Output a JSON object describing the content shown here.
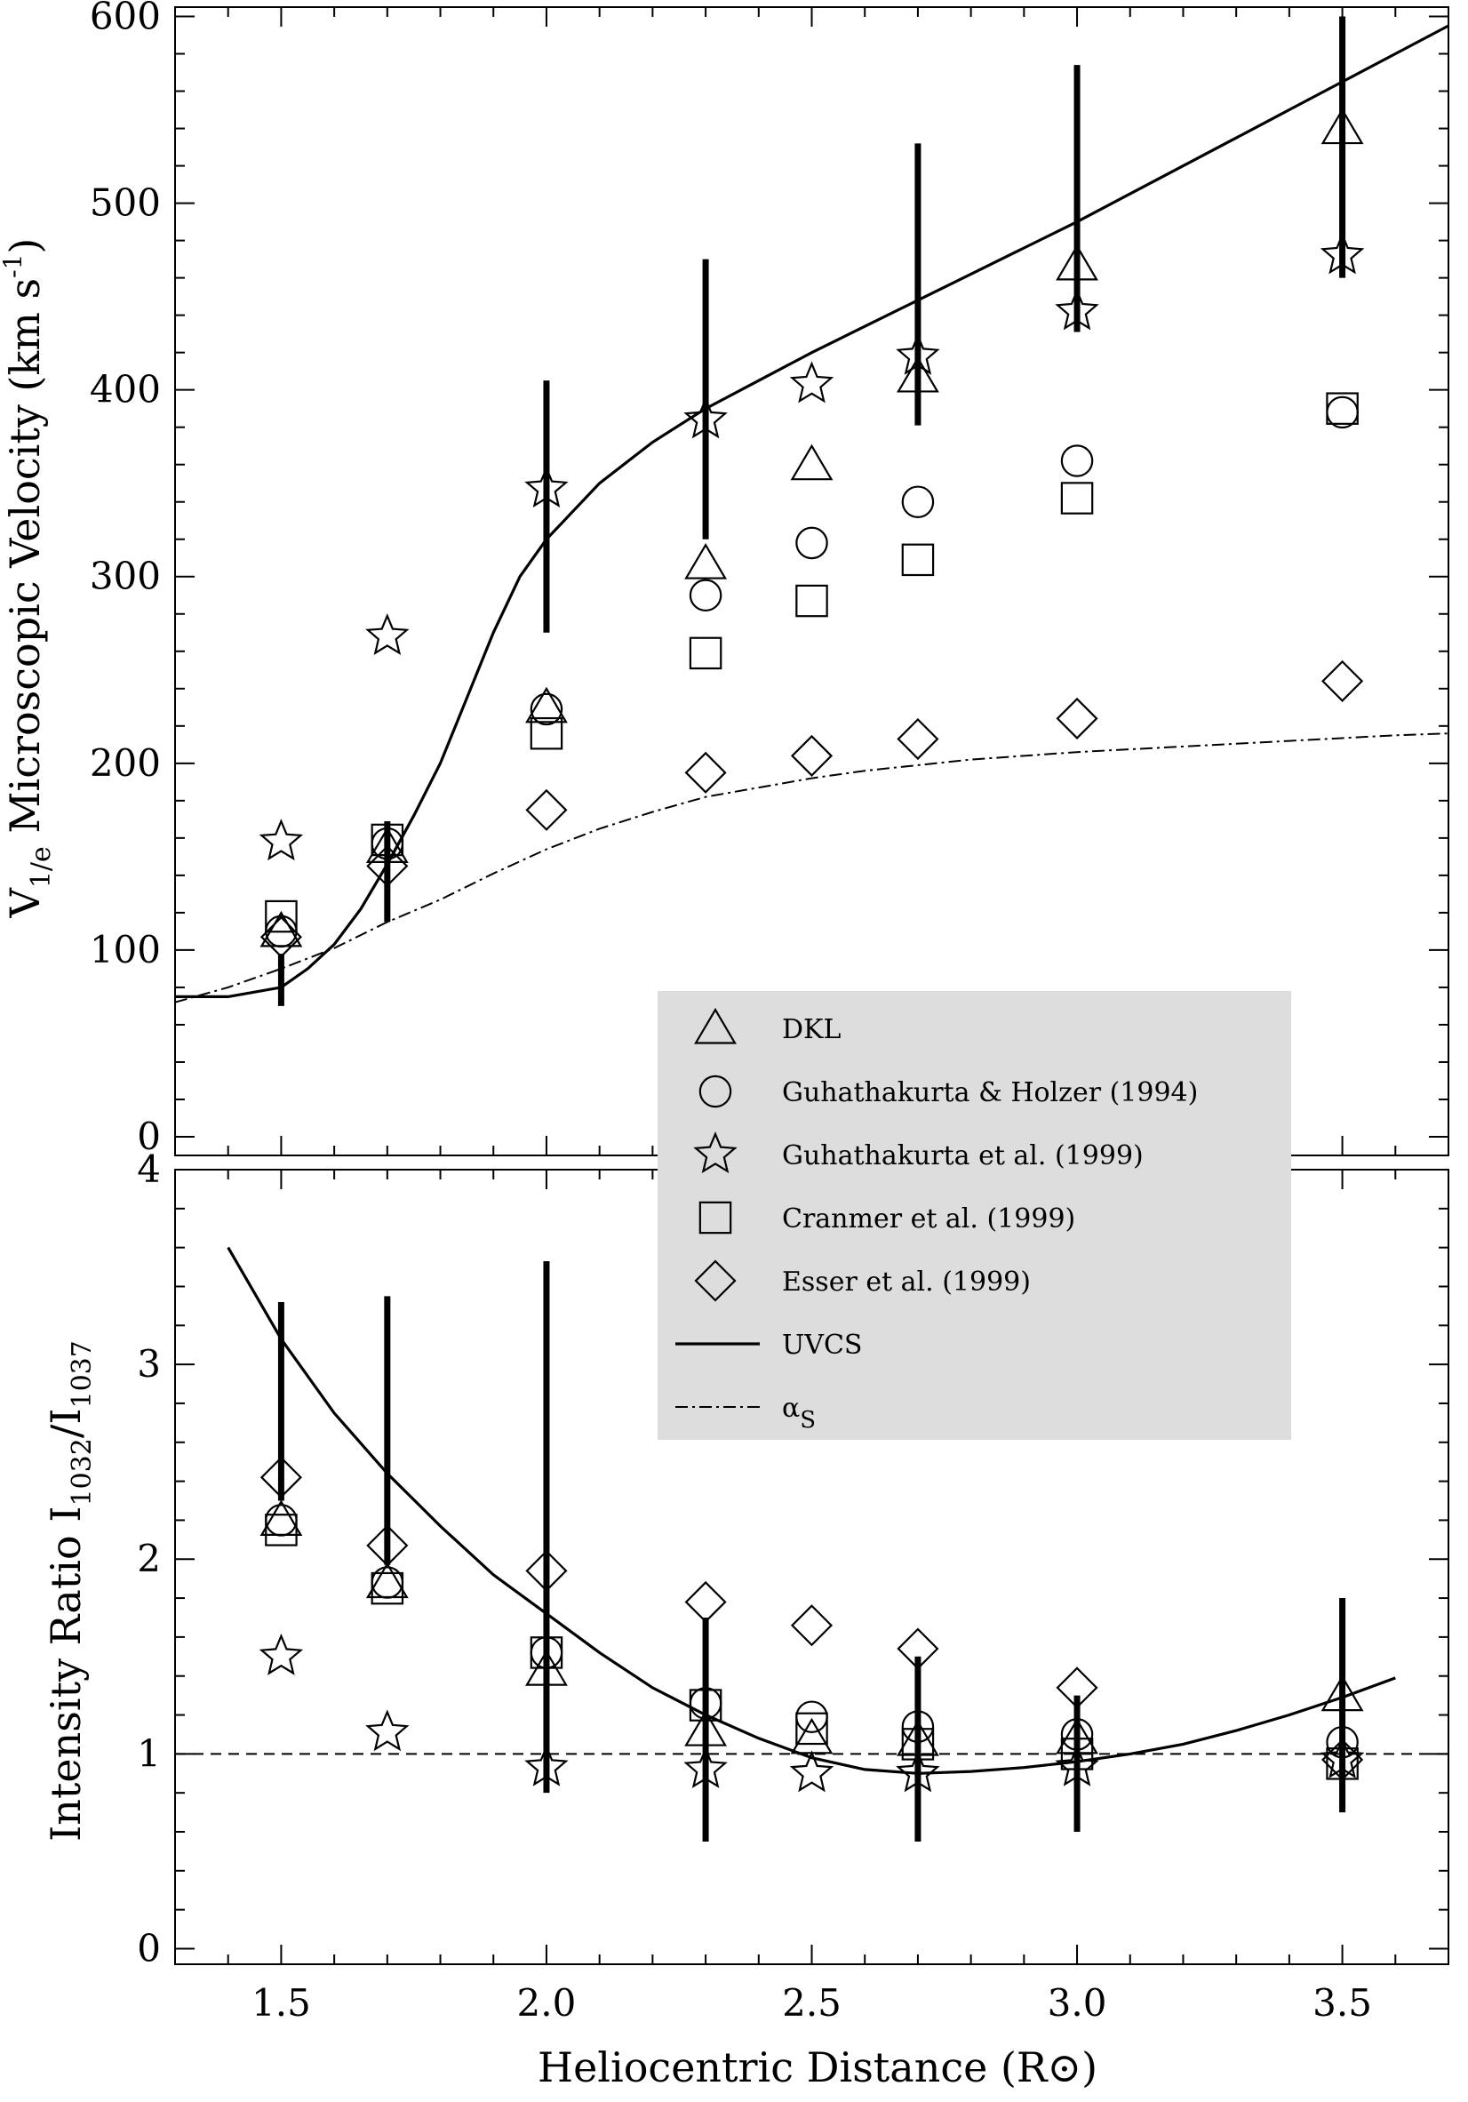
{
  "chart_data": [
    {
      "panel": "top",
      "type": "scatter",
      "ylabel_main": "V",
      "ylabel_sub": "1/e",
      "ylabel_rest": " Microscopic Velocity (km s",
      "ylabel_sup": "-1",
      "ylabel_close": ")",
      "xlim": [
        1.3,
        3.7
      ],
      "ylim": [
        -10,
        605
      ],
      "yticks": [
        0,
        100,
        200,
        300,
        400,
        500,
        600
      ],
      "series": [
        {
          "key": "dkl",
          "name": "DKL",
          "marker": "triangle",
          "x": [
            1.5,
            1.7,
            2.0,
            2.3,
            2.5,
            2.7,
            3.0,
            3.5
          ],
          "y": [
            110,
            155,
            230,
            307,
            360,
            407,
            467,
            540
          ]
        },
        {
          "key": "gh94",
          "name": "Guhathakurta & Holzer (1994)",
          "marker": "circle",
          "x": [
            1.5,
            1.7,
            2.0,
            2.3,
            2.5,
            2.7,
            3.0,
            3.5
          ],
          "y": [
            110,
            157,
            229,
            290,
            318,
            340,
            362,
            388
          ]
        },
        {
          "key": "g99",
          "name": "Guhathakurta et al. (1999)",
          "marker": "star",
          "x": [
            1.5,
            1.7,
            2.0,
            2.3,
            2.5,
            2.7,
            3.0,
            3.5
          ],
          "y": [
            158,
            268,
            347,
            384,
            403,
            418,
            442,
            472
          ]
        },
        {
          "key": "c99",
          "name": "Cranmer et al. (1999)",
          "marker": "square",
          "x": [
            1.5,
            1.7,
            2.0,
            2.3,
            2.5,
            2.7,
            3.0,
            3.5
          ],
          "y": [
            118,
            159,
            216,
            259,
            287,
            309,
            342,
            390
          ]
        },
        {
          "key": "e99",
          "name": "Esser et al. (1999)",
          "marker": "diamond",
          "x": [
            1.5,
            1.7,
            2.0,
            2.3,
            2.5,
            2.7,
            3.0,
            3.5
          ],
          "y": [
            107,
            145,
            175,
            195,
            204,
            213,
            224,
            244
          ]
        }
      ],
      "uvcs_curve": {
        "x": [
          1.3,
          1.4,
          1.5,
          1.55,
          1.6,
          1.65,
          1.7,
          1.75,
          1.8,
          1.85,
          1.9,
          1.95,
          2.0,
          2.1,
          2.2,
          2.3,
          2.4,
          2.5,
          2.6,
          2.7,
          2.8,
          2.9,
          3.0,
          3.1,
          3.2,
          3.3,
          3.4,
          3.5,
          3.6,
          3.7
        ],
        "y": [
          75,
          75,
          80,
          90,
          103,
          122,
          146,
          172,
          200,
          235,
          270,
          300,
          320,
          350,
          372,
          390,
          405,
          420,
          434,
          448,
          462,
          476,
          490,
          505,
          520,
          535,
          550,
          565,
          580,
          595
        ]
      },
      "alpha_curve": {
        "x": [
          1.3,
          1.4,
          1.5,
          1.6,
          1.7,
          1.8,
          1.9,
          2.0,
          2.1,
          2.2,
          2.3,
          2.4,
          2.5,
          2.6,
          2.7,
          2.8,
          2.9,
          3.0,
          3.2,
          3.4,
          3.6,
          3.7
        ],
        "y": [
          72,
          80,
          90,
          101,
          115,
          127,
          141,
          154,
          165,
          174,
          182,
          187,
          192,
          196,
          199,
          202,
          204,
          206,
          209,
          212,
          215,
          216
        ]
      },
      "error_bars": [
        {
          "x": 1.5,
          "low": 70,
          "high": 98
        },
        {
          "x": 1.7,
          "low": 115,
          "high": 169
        },
        {
          "x": 2.0,
          "low": 270,
          "high": 405
        },
        {
          "x": 2.3,
          "low": 320,
          "high": 470
        },
        {
          "x": 2.7,
          "low": 381,
          "high": 532
        },
        {
          "x": 3.0,
          "low": 431,
          "high": 574
        },
        {
          "x": 3.5,
          "low": 460,
          "high": 600
        }
      ]
    },
    {
      "panel": "bottom",
      "type": "scatter",
      "ylabel_main": "Intensity Ratio I",
      "ylabel_sub1": "1032",
      "ylabel_slash": "/I",
      "ylabel_sub2": "1037",
      "xlabel_main": "Heliocentric Distance (R",
      "xlabel_symbol": "⊙",
      "xlabel_close": ")",
      "xlim": [
        1.3,
        3.7
      ],
      "ylim": [
        -0.08,
        4.0
      ],
      "yticks": [
        0,
        1,
        2,
        3,
        4
      ],
      "xticks": [
        "1.5",
        "2.0",
        "2.5",
        "3.0",
        "3.5"
      ],
      "reference_line_y": 1.0,
      "series": [
        {
          "key": "dkl",
          "marker": "triangle",
          "x": [
            1.5,
            1.7,
            2.0,
            2.3,
            2.5,
            2.7,
            3.0,
            3.5
          ],
          "y": [
            2.2,
            1.88,
            1.43,
            1.12,
            1.08,
            1.07,
            1.08,
            1.3
          ]
        },
        {
          "key": "gh94",
          "marker": "circle",
          "x": [
            1.5,
            1.7,
            2.0,
            2.3,
            2.5,
            2.7,
            3.0,
            3.5
          ],
          "y": [
            2.2,
            1.88,
            1.52,
            1.26,
            1.19,
            1.14,
            1.1,
            1.06
          ]
        },
        {
          "key": "g99",
          "marker": "star",
          "x": [
            1.5,
            1.7,
            2.0,
            2.3,
            2.5,
            2.7,
            3.0,
            3.5
          ],
          "y": [
            1.5,
            1.11,
            0.93,
            0.92,
            0.9,
            0.9,
            0.93,
            0.97
          ]
        },
        {
          "key": "c99",
          "marker": "square",
          "x": [
            1.5,
            1.7,
            2.0,
            2.3,
            2.5,
            2.7,
            3.0,
            3.5
          ],
          "y": [
            2.15,
            1.85,
            1.52,
            1.25,
            1.13,
            1.05,
            1.0,
            0.95
          ]
        },
        {
          "key": "e99",
          "marker": "diamond",
          "x": [
            1.5,
            1.7,
            2.0,
            2.3,
            2.5,
            2.7,
            3.0,
            3.5
          ],
          "y": [
            2.42,
            2.07,
            1.94,
            1.78,
            1.66,
            1.54,
            1.34,
            0.97
          ]
        }
      ],
      "uvcs_curve": {
        "x": [
          1.4,
          1.5,
          1.6,
          1.7,
          1.8,
          1.9,
          2.0,
          2.1,
          2.2,
          2.3,
          2.4,
          2.5,
          2.6,
          2.7,
          2.8,
          2.9,
          3.0,
          3.1,
          3.2,
          3.3,
          3.4,
          3.5,
          3.6
        ],
        "y": [
          3.6,
          3.13,
          2.75,
          2.44,
          2.17,
          1.92,
          1.72,
          1.52,
          1.34,
          1.2,
          1.08,
          0.98,
          0.92,
          0.9,
          0.91,
          0.93,
          0.96,
          1.0,
          1.05,
          1.12,
          1.2,
          1.29,
          1.39
        ]
      },
      "error_bars": [
        {
          "x": 1.5,
          "low": 2.3,
          "high": 3.32
        },
        {
          "x": 1.7,
          "low": 1.97,
          "high": 3.35
        },
        {
          "x": 2.0,
          "low": 0.8,
          "high": 3.53
        },
        {
          "x": 2.3,
          "low": 0.55,
          "high": 1.7
        },
        {
          "x": 2.7,
          "low": 0.55,
          "high": 1.5
        },
        {
          "x": 3.0,
          "low": 0.6,
          "high": 1.3
        },
        {
          "x": 3.5,
          "low": 0.7,
          "high": 1.8
        }
      ]
    }
  ],
  "legend": {
    "entries": [
      {
        "marker": "triangle",
        "label": "DKL"
      },
      {
        "marker": "circle",
        "label": "Guhathakurta & Holzer (1994)"
      },
      {
        "marker": "star",
        "label": "Guhathakurta et al. (1999)"
      },
      {
        "marker": "square",
        "label": "Cranmer et al. (1999)"
      },
      {
        "marker": "diamond",
        "label": "Esser et al. (1999)"
      },
      {
        "marker": "solid-line",
        "label": "UVCS"
      },
      {
        "marker": "dashdot-line",
        "label": "α",
        "sub": "S"
      }
    ],
    "background": "#dddddd"
  },
  "colors": {
    "ink": "#000000",
    "legend_bg": "#dddddd",
    "background": "#ffffff"
  }
}
